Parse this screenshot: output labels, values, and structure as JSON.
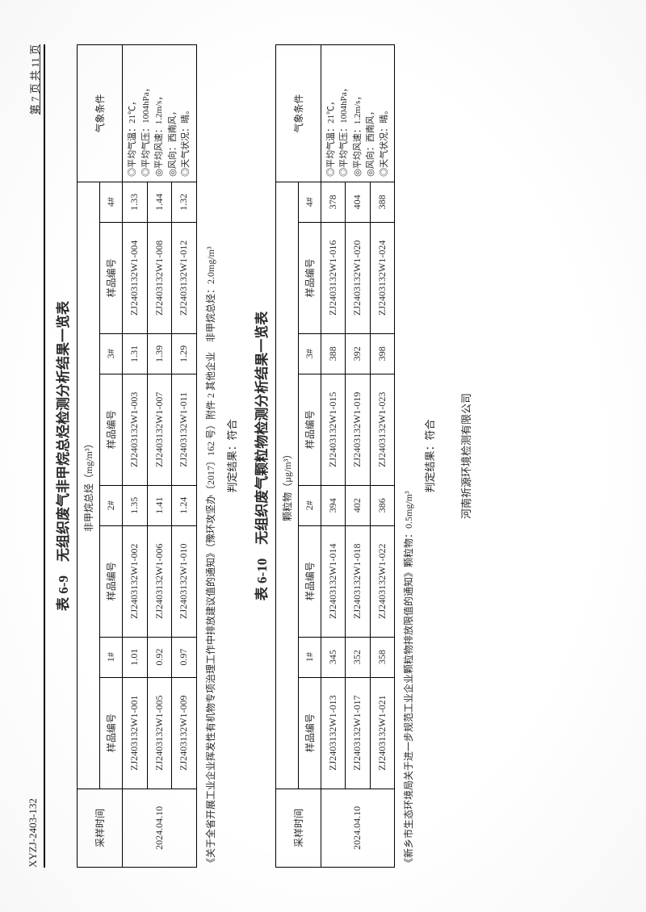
{
  "header": {
    "doc_id": "XYZJ-2403-132",
    "page_label": "第 7 页 共 11 页"
  },
  "table69": {
    "caption": "表 6-9　无组织废气非甲烷总烃检测分析结果一览表",
    "unit_label": "非甲烷总烃（mg/m³）",
    "col_date": "采样时间",
    "col_sample": "样品编号",
    "stations": [
      "1#",
      "2#",
      "3#",
      "4#"
    ],
    "col_meteo": "气象条件",
    "date": "2024.04.10",
    "rows": [
      {
        "codes": [
          "ZJ2403132W1-001",
          "ZJ2403132W1-002",
          "ZJ2403132W1-003",
          "ZJ2403132W1-004"
        ],
        "vals": [
          "1.01",
          "1.35",
          "1.31",
          "1.33"
        ]
      },
      {
        "codes": [
          "ZJ2403132W1-005",
          "ZJ2403132W1-006",
          "ZJ2403132W1-007",
          "ZJ2403132W1-008"
        ],
        "vals": [
          "0.92",
          "1.41",
          "1.39",
          "1.44"
        ]
      },
      {
        "codes": [
          "ZJ2403132W1-009",
          "ZJ2403132W1-010",
          "ZJ2403132W1-011",
          "ZJ2403132W1-012"
        ],
        "vals": [
          "0.97",
          "1.24",
          "1.29",
          "1.32"
        ]
      }
    ],
    "meteo_lines": [
      "◎平均气温：21℃，",
      "◎平均气压：1004hPa，",
      "◎平均风速：1.2m/s，",
      "◎风向：西南风，",
      "◎天气状况：晴。"
    ],
    "note": "《关于全省开展工业企业挥发性有机物专项治理工作中排放建议值的通知》（豫环攻坚办〔2017〕162 号）附件 2 其他企业　非甲烷总烃：2.0mg/m³",
    "verdict": "判定结果：符合"
  },
  "table610": {
    "caption": "表 6-10　无组织废气颗粒物检测分析结果一览表",
    "unit_label": "颗粒物（µg/m³）",
    "col_date": "采样时间",
    "col_sample": "样品编号",
    "stations": [
      "1#",
      "2#",
      "3#",
      "4#"
    ],
    "col_meteo": "气象条件",
    "date": "2024.04.10",
    "rows": [
      {
        "codes": [
          "ZJ2403132W1-013",
          "ZJ2403132W1-014",
          "ZJ2403132W1-015",
          "ZJ2403132W1-016"
        ],
        "vals": [
          "345",
          "394",
          "388",
          "378"
        ]
      },
      {
        "codes": [
          "ZJ2403132W1-017",
          "ZJ2403132W1-018",
          "ZJ2403132W1-019",
          "ZJ2403132W1-020"
        ],
        "vals": [
          "352",
          "402",
          "392",
          "404"
        ]
      },
      {
        "codes": [
          "ZJ2403132W1-021",
          "ZJ2403132W1-022",
          "ZJ2403132W1-023",
          "ZJ2403132W1-024"
        ],
        "vals": [
          "358",
          "386",
          "398",
          "388"
        ]
      }
    ],
    "meteo_lines": [
      "◎平均气温：21℃，",
      "◎平均气压：1004hPa，",
      "◎平均风速：1.2m/s，",
      "◎风向：西南风，",
      "◎天气状况：晴。"
    ],
    "note": "《新乡市生态环境局关于进一步规范工业企业颗粒物排放限值的通知》颗粒物：0.5mg/m³",
    "verdict": "判定结果：符合"
  },
  "footer": {
    "company": "河南祈源环境检测有限公司"
  }
}
